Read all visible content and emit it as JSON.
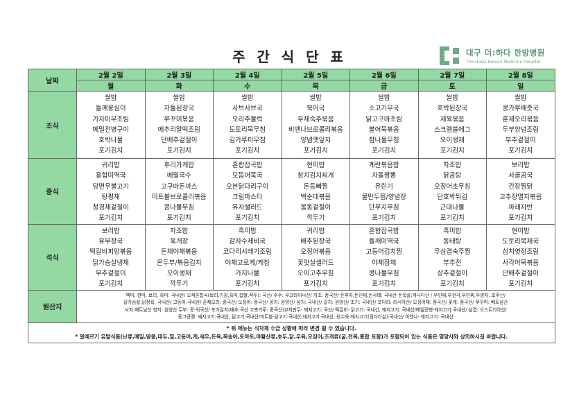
{
  "title": "주 간 식 단 표",
  "logo": {
    "name": "대구 더:하다 한방병원",
    "sub": "The:HaDa Korean Medicine Hospital",
    "color": "#6fa98a"
  },
  "header": {
    "date_label": "날짜",
    "dates": [
      "2월 2일",
      "2월 3일",
      "2월 4일",
      "2월 5일",
      "2월 6일",
      "2월 7일",
      "2월 8일"
    ],
    "days": [
      "월",
      "화",
      "수",
      "목",
      "금",
      "토",
      "일"
    ]
  },
  "meals": [
    {
      "label": "조식",
      "days": [
        [
          "쌀밥",
          "들깨웅심이",
          "가자미무조림",
          "메밀전병구이",
          "호박나물",
          "포기김치"
        ],
        [
          "쌀밥",
          "차돌된장국",
          "쭈꾸미볶음",
          "메추리알떡조림",
          "단배추겉절이",
          "포기김치"
        ],
        [
          "쌀밥",
          "사브사브국",
          "오리주물럭",
          "도토리묵무침",
          "김가루파무침",
          "포기김치"
        ],
        [
          "쌀밥",
          "북어국",
          "우채숙주볶음",
          "비엔나브로콜리볶음",
          "양념깻잎지",
          "포기김치"
        ],
        [
          "쌀밥",
          "소고기무국",
          "닭고구마조림",
          "불어묵볶음",
          "참나물무침",
          "포기김치"
        ],
        [
          "쌀밥",
          "호박된장국",
          "제육볶음",
          "스크렘블에그",
          "오이생채",
          "포기김치"
        ],
        [
          "쌀밥",
          "콩가루배춧국",
          "훈제오리볶음",
          "두부양념조림",
          "부추겉절이",
          "포기김치"
        ]
      ]
    },
    {
      "label": "중식",
      "days": [
        [
          "귀리밥",
          "홍합미역국",
          "당면우불고기",
          "탕평채",
          "청경채겉절이",
          "포기김치"
        ],
        [
          "후리가케밥",
          "메밀국수",
          "고구마돈까스",
          "미트볼브로콜리볶음",
          "콩나물무침",
          "포기김치"
        ],
        [
          "혼합잡곡밥",
          "모듬어묵국",
          "오븐닭다리구이",
          "크림파스타",
          "유자샐러드",
          "포기김치"
        ],
        [
          "현미밥",
          "참치김치찌개",
          "돈등뼈찜",
          "백순대볶음",
          "봄동겉절이",
          "깍두기"
        ],
        [
          "계란볶음밥",
          "차돌짬뽕",
          "유린기",
          "물만두찜/양념장",
          "단무지무침",
          "포기김치"
        ],
        [
          "차조밥",
          "닭곰탕",
          "오징어초무침",
          "단호박튀김",
          "근대나물",
          "포기김치"
        ],
        [
          "보리밥",
          "사골곰국",
          "간장찜닭",
          "고추장멸치볶음",
          "파래자반",
          "포기김치"
        ]
      ]
    },
    {
      "label": "석식",
      "days": [
        [
          "보리밥",
          "유부장국",
          "떡갈비피망볶음",
          "닭가슴살냉채",
          "부추겉절이",
          "포기김치"
        ],
        [
          "차조밥",
          "육개장",
          "돈채야채볶음",
          "온두부/볶음김치",
          "오이생채",
          "깍두기"
        ],
        [
          "흑미밥",
          "감자수제비국",
          "코다리시래기조림",
          "야채고로케/케찹",
          "가지나물",
          "포기김치"
        ],
        [
          "귀리밥",
          "배추된장국",
          "오징어볶음",
          "꽃맛살샐러드",
          "오이고추무침",
          "포기김치"
        ],
        [
          "혼합잡곡밥",
          "들깨미역국",
          "고등어김치찜",
          "야채잡채",
          "콩나물무침",
          "포기김치"
        ],
        [
          "흑미밥",
          "동태탕",
          "우삼겹숙주찜",
          "부추전",
          "상추겉절이",
          "포기김치"
        ],
        [
          "현미밥",
          "도토리묵채국",
          "삼치엿장조림",
          "사각어묵볶음",
          "단배추겉절이",
          "포기김치"
        ]
      ]
    }
  ],
  "origin": {
    "label": "원산지",
    "lines": [
      "백미, 현미, 보리, 흑미: 국내산/ 오색혼합곡(보리,기장,흑미,찹쌀,적두): 국산/ 수수: 우크라이나산/ 치조: 중국산/ 돈후지,돈민찌,돈사태: 국내산 돈목살:캐나다산 / 우민찌,우전각,우민찌,우양지: 호주산/",
      "닭가슴살,닭정육: 국내산/ 고등어:국내산/ 훈제오리: 중국산/ 오징어: 중국산/ 꽁치: 원양산/ 삼치: 국내산/ 갈치: 원양산/ 조기: 국내산/ 코다리: 러시아산/ 오징어채: 중국산/ 꽃게: 중국산/ 쭈꾸미: 베트남산",
      "낙지:베트남산 청치: 원양산 두부: 콩-외국산/ 포기김치(배추:국산 고춧가루: 중국산)교지만두- 돼지고기: 국산/ 떡갈비- 닭고기: 국내산, 돼지고기: 국내산/메밀전병-돼지고기:국내산/ 삼겹: 오스트리아산/",
      "동그랑땡: 돼지고기:국내산, 닭고기:국내산/미트볼-닭고기:국내산,돼지고기:국내산, 탕수육-돼지고기(뒷다리살):국내산/ 비엔나- 돼지고기: 국내산"
    ]
  },
  "notes": [
    "* 위 메뉴는 식자재 수급 상황에 따라 변경 될 수 있습니다.",
    "* 알레르기 유발식품(난류,메밀,땅콩,대두,밀,고등어,게,새우,돈육,복숭아,토마토,아황산류,호두,닭,우육,오징어,조개류(굴,전복,홍합 포함)가 포함되어 있는 식품은 영양사와 상의하시길 바랍니다."
  ],
  "colors": {
    "header_green": "#94d8a4",
    "border": "#666666"
  }
}
